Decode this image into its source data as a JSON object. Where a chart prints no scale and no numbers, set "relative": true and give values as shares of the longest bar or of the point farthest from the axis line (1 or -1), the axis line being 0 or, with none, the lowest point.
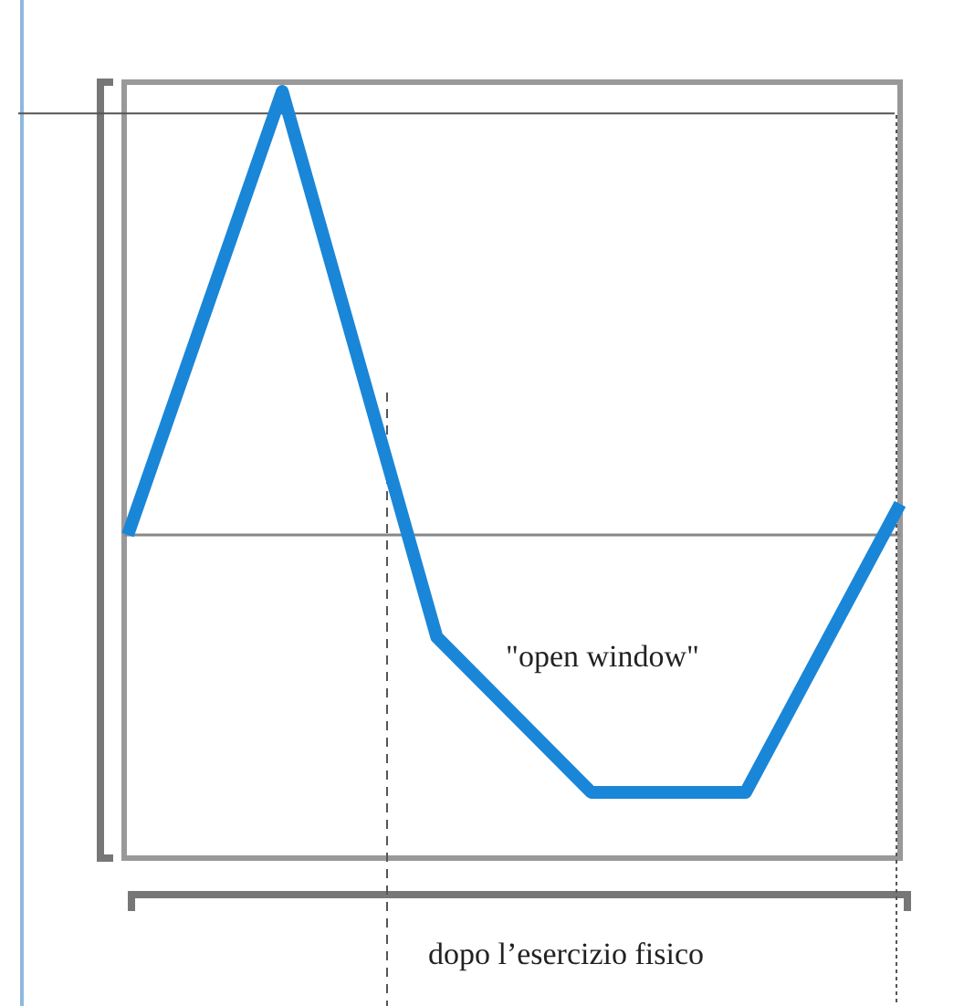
{
  "chart_data": {
    "type": "line",
    "relative": true,
    "categories": [
      null,
      null,
      null,
      null,
      null,
      null
    ],
    "series": [
      {
        "color": "#1a86d8",
        "values": [
          0,
          1,
          -0.23,
          -0.58,
          -0.58,
          0.07
        ]
      }
    ],
    "ref_lines": [
      {
        "axis": "y",
        "value": 0.95,
        "color": "#555555",
        "line_style": "solid"
      }
    ],
    "annotations": [
      "\"open window\"",
      "dopo l’esercizio fisico"
    ],
    "marker": "none",
    "line_style": "solid"
  }
}
